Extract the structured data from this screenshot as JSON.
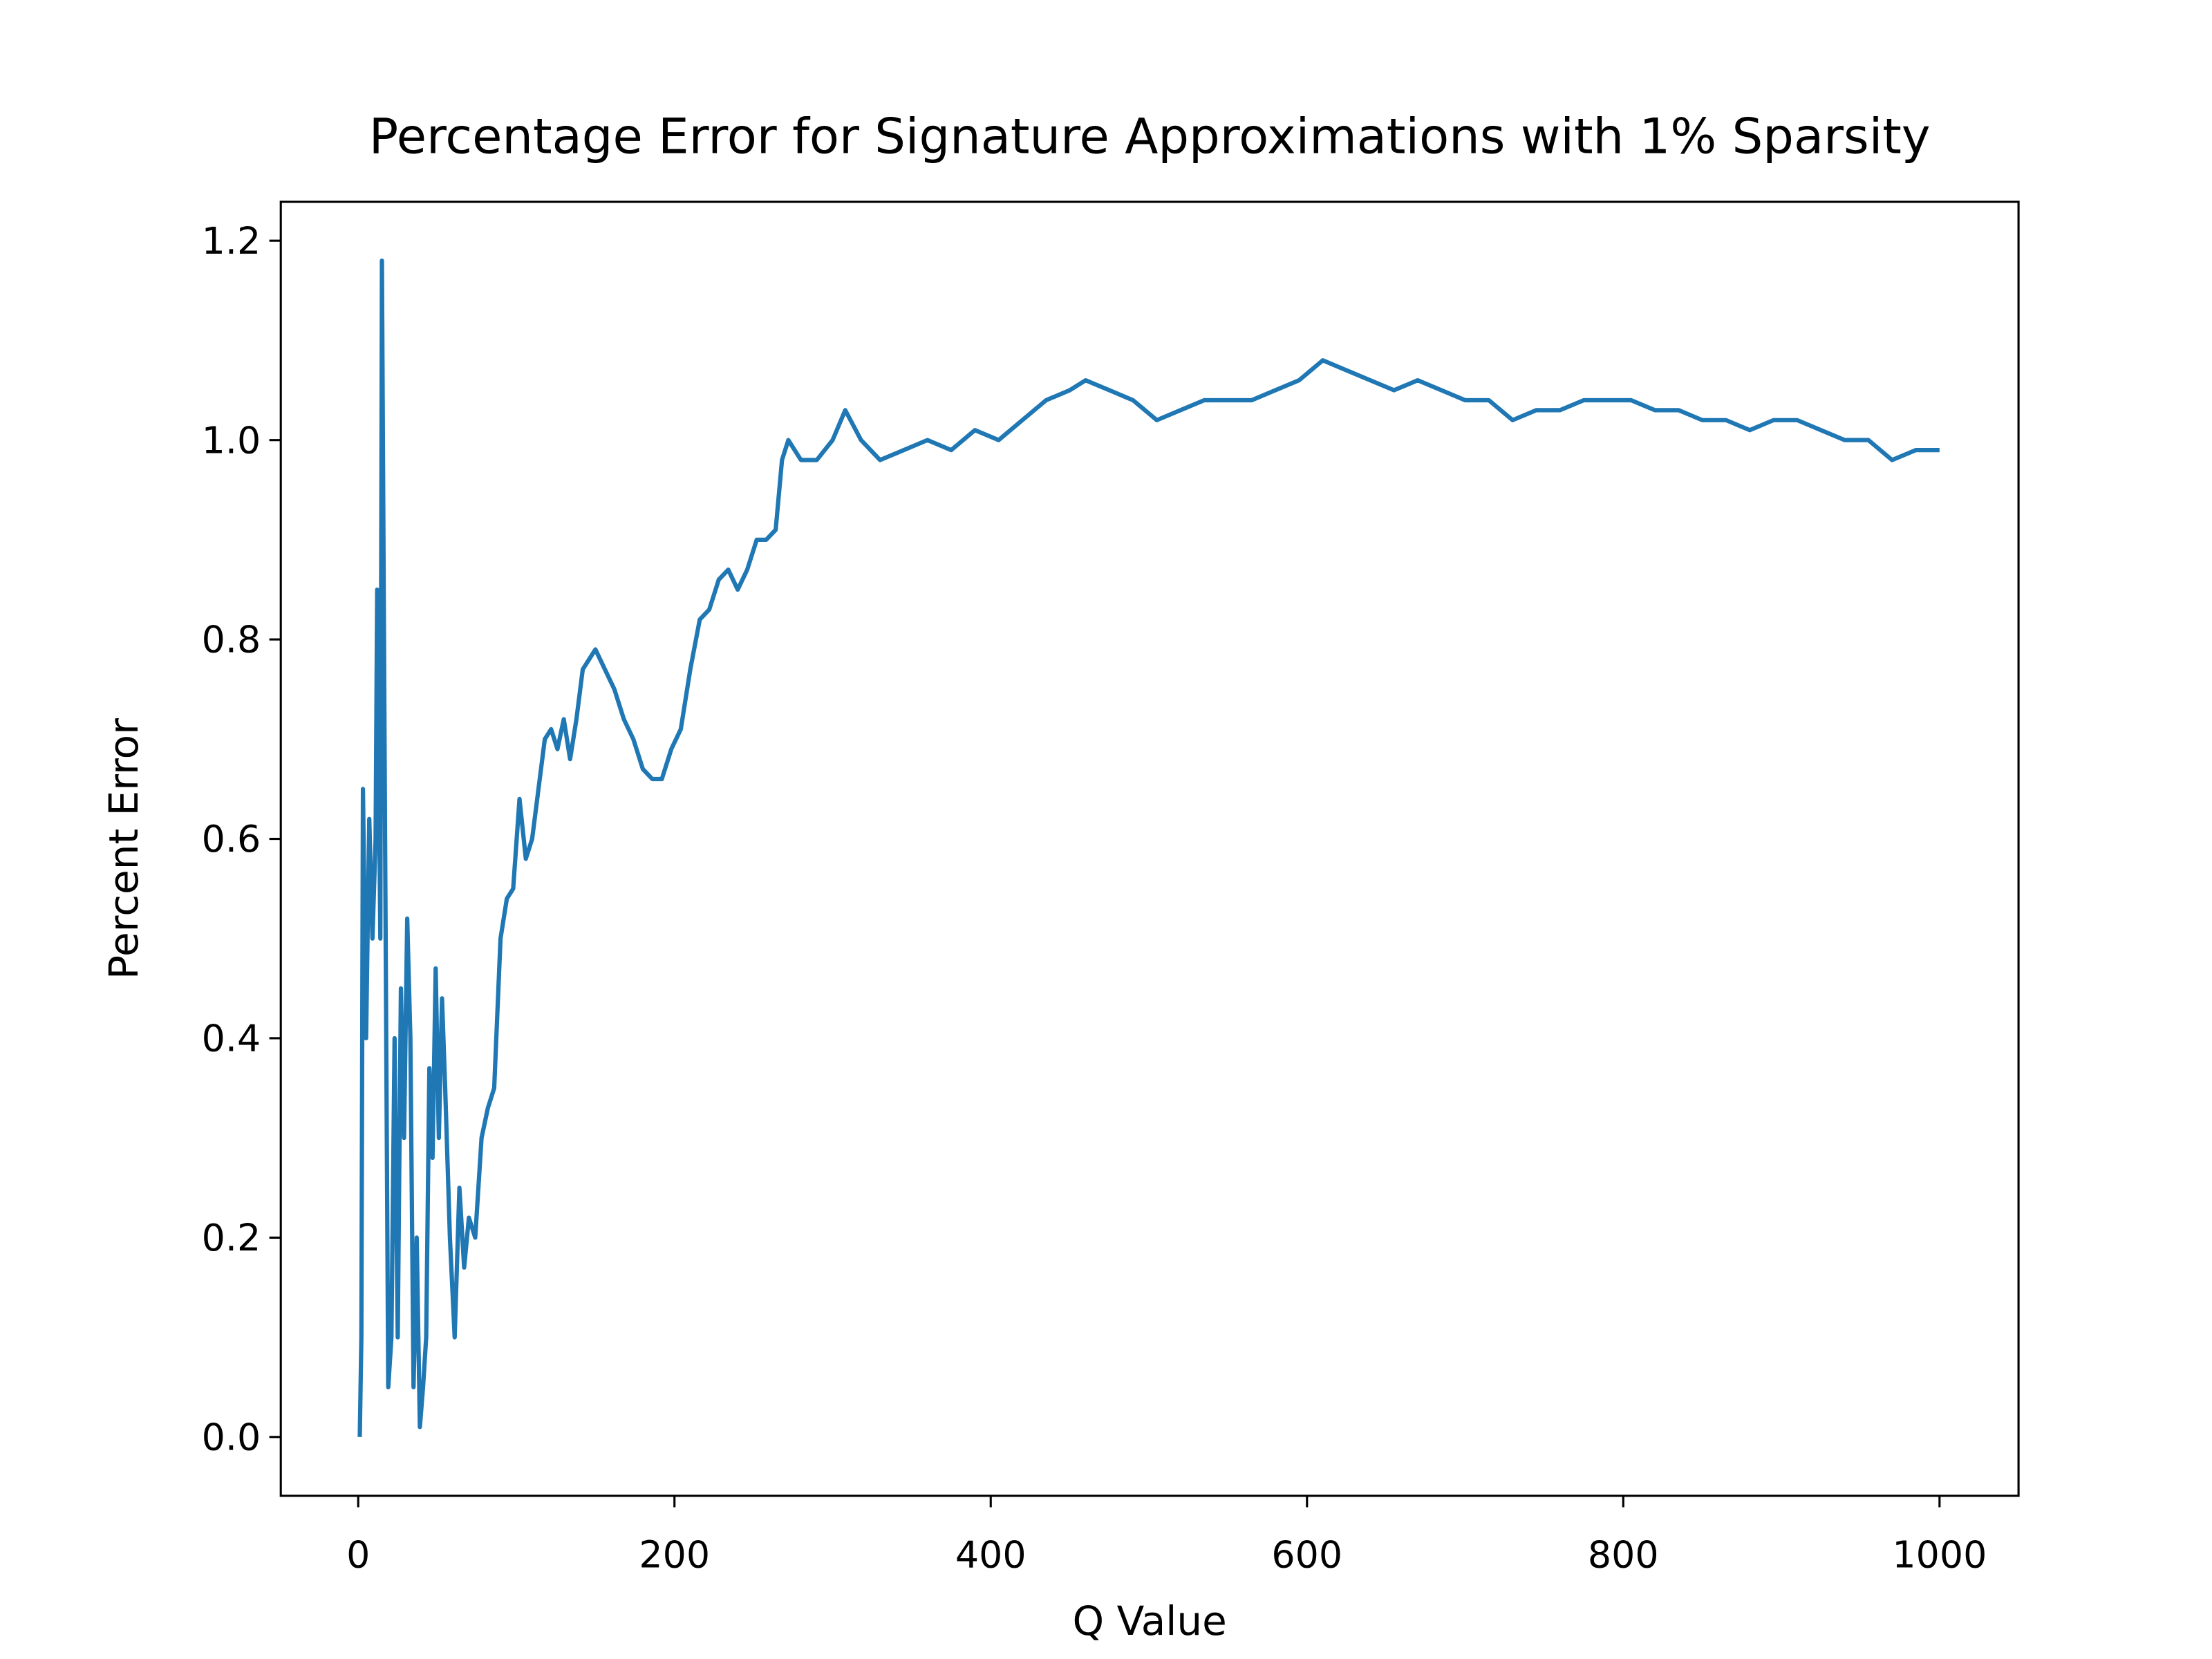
{
  "chart_data": {
    "type": "line",
    "title": "Percentage Error for Signature Approximations with 1% Sparsity",
    "xlabel": "Q Value",
    "ylabel": "Percent Error",
    "x": [
      1,
      2,
      3,
      5,
      7,
      9,
      11,
      12,
      14,
      15,
      17,
      19,
      21,
      23,
      25,
      27,
      29,
      31,
      33,
      35,
      37,
      39,
      41,
      43,
      45,
      47,
      49,
      51,
      53,
      55,
      58,
      61,
      64,
      67,
      70,
      74,
      78,
      82,
      86,
      90,
      94,
      98,
      102,
      106,
      110,
      114,
      118,
      122,
      126,
      130,
      134,
      138,
      142,
      146,
      150,
      156,
      162,
      168,
      174,
      180,
      186,
      192,
      198,
      204,
      210,
      216,
      222,
      228,
      234,
      240,
      246,
      252,
      258,
      264,
      268,
      272,
      280,
      290,
      300,
      308,
      318,
      330,
      345,
      360,
      375,
      390,
      405,
      420,
      435,
      450,
      460,
      475,
      490,
      505,
      520,
      535,
      550,
      565,
      580,
      595,
      610,
      625,
      640,
      655,
      670,
      685,
      700,
      715,
      730,
      745,
      760,
      775,
      790,
      805,
      820,
      835,
      850,
      865,
      880,
      895,
      910,
      925,
      940,
      955,
      970,
      985,
      1000
    ],
    "series": [
      {
        "name": "Percent Error",
        "color": "#1f77b4",
        "values": [
          0,
          0.1,
          0.65,
          0.4,
          0.62,
          0.5,
          0.6,
          0.85,
          0.5,
          1.18,
          0.6,
          0.05,
          0.1,
          0.4,
          0.1,
          0.45,
          0.3,
          0.52,
          0.4,
          0.05,
          0.2,
          0.01,
          0.05,
          0.1,
          0.37,
          0.28,
          0.47,
          0.3,
          0.44,
          0.35,
          0.2,
          0.1,
          0.25,
          0.17,
          0.22,
          0.2,
          0.3,
          0.33,
          0.35,
          0.5,
          0.54,
          0.55,
          0.64,
          0.58,
          0.6,
          0.65,
          0.7,
          0.71,
          0.69,
          0.72,
          0.68,
          0.72,
          0.77,
          0.78,
          0.79,
          0.77,
          0.75,
          0.72,
          0.7,
          0.67,
          0.66,
          0.66,
          0.69,
          0.71,
          0.77,
          0.82,
          0.83,
          0.86,
          0.87,
          0.85,
          0.87,
          0.9,
          0.9,
          0.91,
          0.98,
          1.0,
          0.98,
          0.98,
          1.0,
          1.03,
          1.0,
          0.98,
          0.99,
          1.0,
          0.99,
          1.01,
          1.0,
          1.02,
          1.04,
          1.05,
          1.06,
          1.05,
          1.04,
          1.02,
          1.03,
          1.04,
          1.04,
          1.04,
          1.05,
          1.06,
          1.08,
          1.07,
          1.06,
          1.05,
          1.06,
          1.05,
          1.04,
          1.04,
          1.02,
          1.03,
          1.03,
          1.04,
          1.04,
          1.04,
          1.03,
          1.03,
          1.02,
          1.02,
          1.01,
          1.02,
          1.02,
          1.01,
          1.0,
          1.0,
          0.98,
          0.99,
          0.99
        ]
      }
    ],
    "xlim": [
      -48.95,
      1049.95
    ],
    "ylim": [
      -0.059,
      1.239
    ],
    "xticks": [
      0,
      200,
      400,
      600,
      800,
      1000
    ],
    "yticks": [
      {
        "value": 0,
        "label": "0.0"
      },
      {
        "value": 0.2,
        "label": "0.2"
      },
      {
        "value": 0.4,
        "label": "0.4"
      },
      {
        "value": 0.6,
        "label": "0.6"
      },
      {
        "value": 0.8,
        "label": "0.8"
      },
      {
        "value": 1,
        "label": "1.0"
      },
      {
        "value": 1.2,
        "label": "1.2"
      }
    ]
  }
}
